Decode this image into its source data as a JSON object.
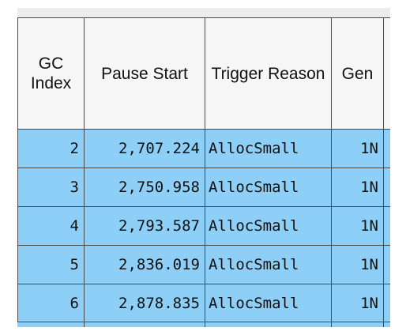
{
  "grid": {
    "columns": [
      {
        "key": "gc_index",
        "label": "GC Index"
      },
      {
        "key": "pause_start",
        "label": "Pause Start"
      },
      {
        "key": "trigger_reason",
        "label": "Trigger Reason"
      },
      {
        "key": "gen",
        "label": "Gen"
      },
      {
        "key": "extra",
        "label": ""
      }
    ],
    "rows": [
      {
        "gc_index": "2",
        "pause_start": "2,707.224",
        "trigger_reason": "AllocSmall",
        "gen": "1N"
      },
      {
        "gc_index": "3",
        "pause_start": "2,750.958",
        "trigger_reason": "AllocSmall",
        "gen": "1N"
      },
      {
        "gc_index": "4",
        "pause_start": "2,793.587",
        "trigger_reason": "AllocSmall",
        "gen": "1N"
      },
      {
        "gc_index": "5",
        "pause_start": "2,836.019",
        "trigger_reason": "AllocSmall",
        "gen": "1N"
      },
      {
        "gc_index": "6",
        "pause_start": "2,878.835",
        "trigger_reason": "AllocSmall",
        "gen": "1N"
      }
    ]
  },
  "colors": {
    "header_bg": "#f6f6f6",
    "row_bg": "#8ecff7",
    "grid_line": "#4a4a4a"
  }
}
